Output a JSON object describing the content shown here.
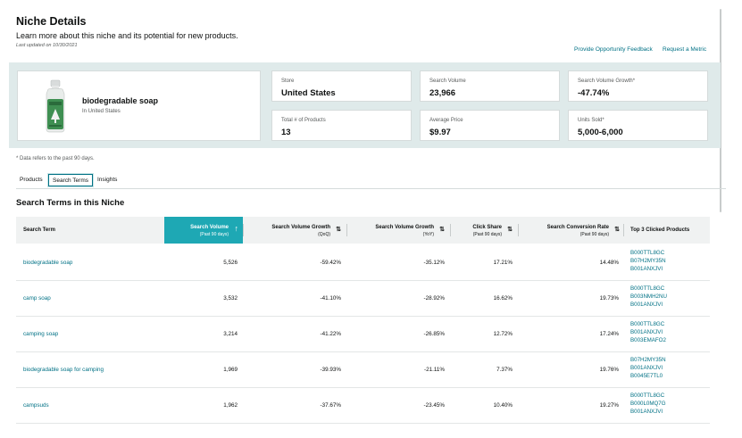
{
  "header": {
    "title": "Niche Details",
    "subtitle": "Learn more about this niche and its potential for new products.",
    "last_updated": "Last updated on 10/30/2021",
    "links": [
      "Provide Opportunity Feedback",
      "Request a Metric"
    ]
  },
  "product": {
    "name": "biodegradable soap",
    "location": "In United States"
  },
  "metrics": [
    {
      "label": "Store",
      "value": "United States"
    },
    {
      "label": "Search Volume",
      "value": "23,966"
    },
    {
      "label": "Search Volume Growth*",
      "value": "-47.74%"
    },
    {
      "label": "Total # of Products",
      "value": "13"
    },
    {
      "label": "Average Price",
      "value": "$9.97"
    },
    {
      "label": "Units Sold*",
      "value": "5,000-6,000"
    }
  ],
  "footnote": "* Data refers to the past 90 days.",
  "tabs": [
    "Products",
    "Search Terms",
    "Insights"
  ],
  "active_tab": "Search Terms",
  "section_title": "Search Terms in this Niche",
  "table": {
    "columns": [
      {
        "l1": "Search Term",
        "l2": ""
      },
      {
        "l1": "Search Volume",
        "l2": "(Past 90 days)"
      },
      {
        "l1": "Search Volume Growth",
        "l2": "(QoQ)"
      },
      {
        "l1": "Search Volume Growth",
        "l2": "(YoY)"
      },
      {
        "l1": "Click Share",
        "l2": "(Past 90 days)"
      },
      {
        "l1": "Search Conversion Rate",
        "l2": "(Past 90 days)"
      },
      {
        "l1": "Top 3 Clicked Products",
        "l2": ""
      }
    ],
    "sort_glyph": "↑",
    "sortable_glyph": "⇅",
    "rows": [
      {
        "term": "biodegradable soap",
        "volume": "5,526",
        "qoq": "-59.42%",
        "yoy": "-35.12%",
        "click": "17.21%",
        "conv": "14.48%",
        "asins": [
          "B000TTL8GC",
          "B07H2MY35N",
          "B001ANXJVI"
        ]
      },
      {
        "term": "camp soap",
        "volume": "3,532",
        "qoq": "-41.10%",
        "yoy": "-28.92%",
        "click": "16.62%",
        "conv": "19.73%",
        "asins": [
          "B000TTL8GC",
          "B003NMH2NU",
          "B001ANXJVI"
        ]
      },
      {
        "term": "camping soap",
        "volume": "3,214",
        "qoq": "-41.22%",
        "yoy": "-26.85%",
        "click": "12.72%",
        "conv": "17.24%",
        "asins": [
          "B000TTL8GC",
          "B001ANXJVI",
          "B003EMAFO2"
        ]
      },
      {
        "term": "biodegradable soap for camping",
        "volume": "1,969",
        "qoq": "-39.93%",
        "yoy": "-21.11%",
        "click": "7.37%",
        "conv": "19.76%",
        "asins": [
          "B07H2MY35N",
          "B001ANXJVI",
          "B0045E7TL0"
        ]
      },
      {
        "term": "campsuds",
        "volume": "1,962",
        "qoq": "-37.67%",
        "yoy": "-23.45%",
        "click": "10.40%",
        "conv": "19.27%",
        "asins": [
          "B000TTL8GC",
          "B000L0MQ7G",
          "B001ANXJVI"
        ]
      }
    ]
  },
  "colors": {
    "link": "#007185",
    "sorted_header": "#1ea8b4",
    "panel": "#dfeaea"
  }
}
